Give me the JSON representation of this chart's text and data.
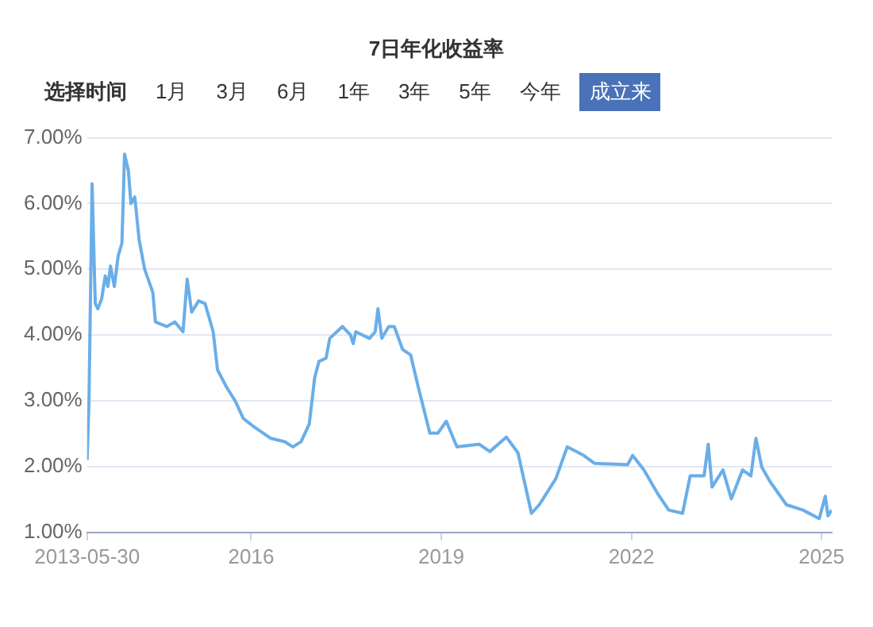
{
  "chart_data": {
    "type": "line",
    "title": "7日年化收益率",
    "annotations": [
      "选择时间",
      "1月",
      "3月",
      "6月",
      "1年",
      "3年",
      "5年",
      "今年",
      "成立来"
    ],
    "x": [
      "2013-05-30",
      "2013-06-10",
      "2013-06-28",
      "2013-07-16",
      "2013-07-31",
      "2013-08-22",
      "2013-09-12",
      "2013-09-27",
      "2013-10-12",
      "2013-11-03",
      "2013-11-25",
      "2013-12-17",
      "2014-01-01",
      "2014-01-23",
      "2014-02-07",
      "2014-03-01",
      "2014-03-26",
      "2014-04-27",
      "2014-06-13",
      "2014-06-28",
      "2014-09-01",
      "2014-10-18",
      "2014-12-04",
      "2014-12-28",
      "2015-01-23",
      "2015-03-04",
      "2015-04-10",
      "2015-05-27",
      "2015-06-21",
      "2015-08-14",
      "2015-10-01",
      "2015-11-17",
      "2016-01-20",
      "2016-04-23",
      "2016-07-12",
      "2016-08-29",
      "2016-10-15",
      "2016-12-01",
      "2017-01-01",
      "2017-01-26",
      "2017-03-08",
      "2017-03-29",
      "2017-06-10",
      "2017-07-27",
      "2017-08-11",
      "2017-08-26",
      "2017-11-13",
      "2017-12-16",
      "2018-01-01",
      "2018-01-23",
      "2018-03-04",
      "2018-04-05",
      "2018-05-23",
      "2018-07-08",
      "2018-08-25",
      "2018-10-27",
      "2018-12-13",
      "2019-01-30",
      "2019-04-01",
      "2019-08-07",
      "2019-10-08",
      "2020-01-11",
      "2020-03-18",
      "2020-06-04",
      "2020-07-19",
      "2020-10-23",
      "2020-12-27",
      "2021-04-01",
      "2021-06-03",
      "2021-12-10",
      "2022-01-08",
      "2022-03-14",
      "2022-05-30",
      "2022-08-04",
      "2022-10-23",
      "2022-12-06",
      "2023-02-24",
      "2023-03-20",
      "2023-04-11",
      "2023-06-13",
      "2023-07-31",
      "2023-10-04",
      "2023-11-21",
      "2023-12-20",
      "2024-01-23",
      "2024-03-11",
      "2024-06-13",
      "2024-09-16",
      "2024-12-19",
      "2025-01-23",
      "2025-02-07",
      "2025-03-01"
    ],
    "series": [
      {
        "color": "#6aaee8",
        "values": [
          2.1,
          3.0,
          6.3,
          4.48,
          4.4,
          4.55,
          4.9,
          4.74,
          5.05,
          4.74,
          5.2,
          5.4,
          6.75,
          6.5,
          6.0,
          6.1,
          5.45,
          5.0,
          4.65,
          4.2,
          4.13,
          4.2,
          4.05,
          4.85,
          4.35,
          4.52,
          4.48,
          4.05,
          3.47,
          3.2,
          3.0,
          2.73,
          2.6,
          2.43,
          2.38,
          2.3,
          2.38,
          2.65,
          3.35,
          3.6,
          3.65,
          3.95,
          4.13,
          4.0,
          3.87,
          4.05,
          3.95,
          4.05,
          4.4,
          3.95,
          4.13,
          4.13,
          3.78,
          3.7,
          3.17,
          2.51,
          2.51,
          2.69,
          2.3,
          2.34,
          2.23,
          2.45,
          2.21,
          1.29,
          1.42,
          1.82,
          2.3,
          2.17,
          2.05,
          2.03,
          2.17,
          1.95,
          1.6,
          1.34,
          1.29,
          1.86,
          1.86,
          2.34,
          1.69,
          1.95,
          1.51,
          1.95,
          1.86,
          2.43,
          1.99,
          1.77,
          1.42,
          1.34,
          1.21,
          1.55,
          1.25,
          1.34
        ]
      }
    ],
    "xlim": [
      "2013-05-30",
      "2025-03-01"
    ],
    "xticks": [
      {
        "value": "2013-05-30",
        "label": "2013-05-30"
      },
      {
        "value": "2016",
        "label": "2016"
      },
      {
        "value": "2019",
        "label": "2019"
      },
      {
        "value": "2022",
        "label": "2022"
      },
      {
        "value": "2025",
        "label": "2025"
      }
    ],
    "ylim": [
      1,
      7
    ],
    "yticks": [
      {
        "value": 1,
        "label": "1.00%"
      },
      {
        "value": 2,
        "label": "2.00%"
      },
      {
        "value": 3,
        "label": "3.00%"
      },
      {
        "value": 4,
        "label": "4.00%"
      },
      {
        "value": 5,
        "label": "5.00%"
      },
      {
        "value": 6,
        "label": "6.00%"
      },
      {
        "value": 7,
        "label": "7.00%"
      }
    ],
    "grid": "y",
    "marker": "none",
    "line_style": "solid"
  }
}
